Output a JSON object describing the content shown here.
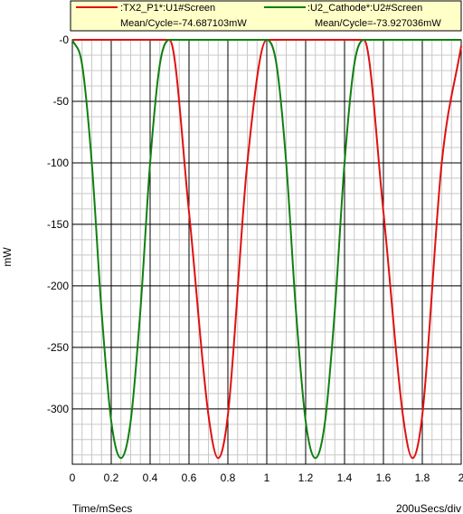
{
  "chart_data": {
    "type": "line",
    "ylabel": "mW",
    "xlabel": "Time/mSecs",
    "x_scale_label": "200uSecs/div",
    "xlim": [
      0,
      2
    ],
    "ylim": [
      -345,
      0
    ],
    "x_ticks": [
      0,
      0.2,
      0.4,
      0.6,
      0.8,
      1,
      1.2,
      1.4,
      1.6,
      1.8,
      2
    ],
    "x_tick_labels": [
      "0",
      "0.2",
      "0.4",
      "0.6",
      "0.8",
      "1",
      "1.2",
      "1.4",
      "1.6",
      "1.8",
      "2"
    ],
    "y_ticks": [
      0,
      -50,
      -100,
      -150,
      -200,
      -250,
      -300
    ],
    "y_tick_labels": [
      "-0",
      "-50",
      "-100",
      "-150",
      "-200",
      "-250",
      "-300"
    ],
    "grid": true,
    "minor_grid": true,
    "legend_position": "top",
    "series": [
      {
        "name": ":TX2_P1*:U1#Screen",
        "mean_label": "Mean/Cycle=-74.687103mW",
        "color": "#e01010",
        "x": [
          0,
          0.1,
          0.2,
          0.3,
          0.4,
          0.5,
          0.6,
          0.7,
          0.75,
          0.8,
          0.9,
          1,
          1.1,
          1.2,
          1.3,
          1.4,
          1.5,
          1.6,
          1.7,
          1.75,
          1.8,
          1.9,
          2
        ],
        "y": [
          0,
          0,
          0,
          0,
          0,
          0,
          -140,
          -305,
          -340,
          -305,
          -100,
          0,
          0,
          0,
          0,
          0,
          0,
          -140,
          -305,
          -340,
          -305,
          -100,
          -5
        ]
      },
      {
        "name": ":U2_Cathode*:U2#Screen",
        "mean_label": "Mean/Cycle=-73.927036mW",
        "color": "#108010",
        "x": [
          0,
          0.05,
          0.1,
          0.15,
          0.2,
          0.25,
          0.3,
          0.35,
          0.4,
          0.45,
          0.5,
          0.55,
          1,
          1.05,
          1.1,
          1.15,
          1.2,
          1.25,
          1.3,
          1.35,
          1.4,
          1.45,
          1.5,
          1.55,
          2
        ],
        "y": [
          0,
          -20,
          -100,
          -220,
          -310,
          -340,
          -310,
          -220,
          -100,
          -20,
          0,
          0,
          0,
          -20,
          -100,
          -220,
          -310,
          -340,
          -310,
          -220,
          -100,
          -20,
          0,
          0,
          0
        ]
      }
    ]
  }
}
